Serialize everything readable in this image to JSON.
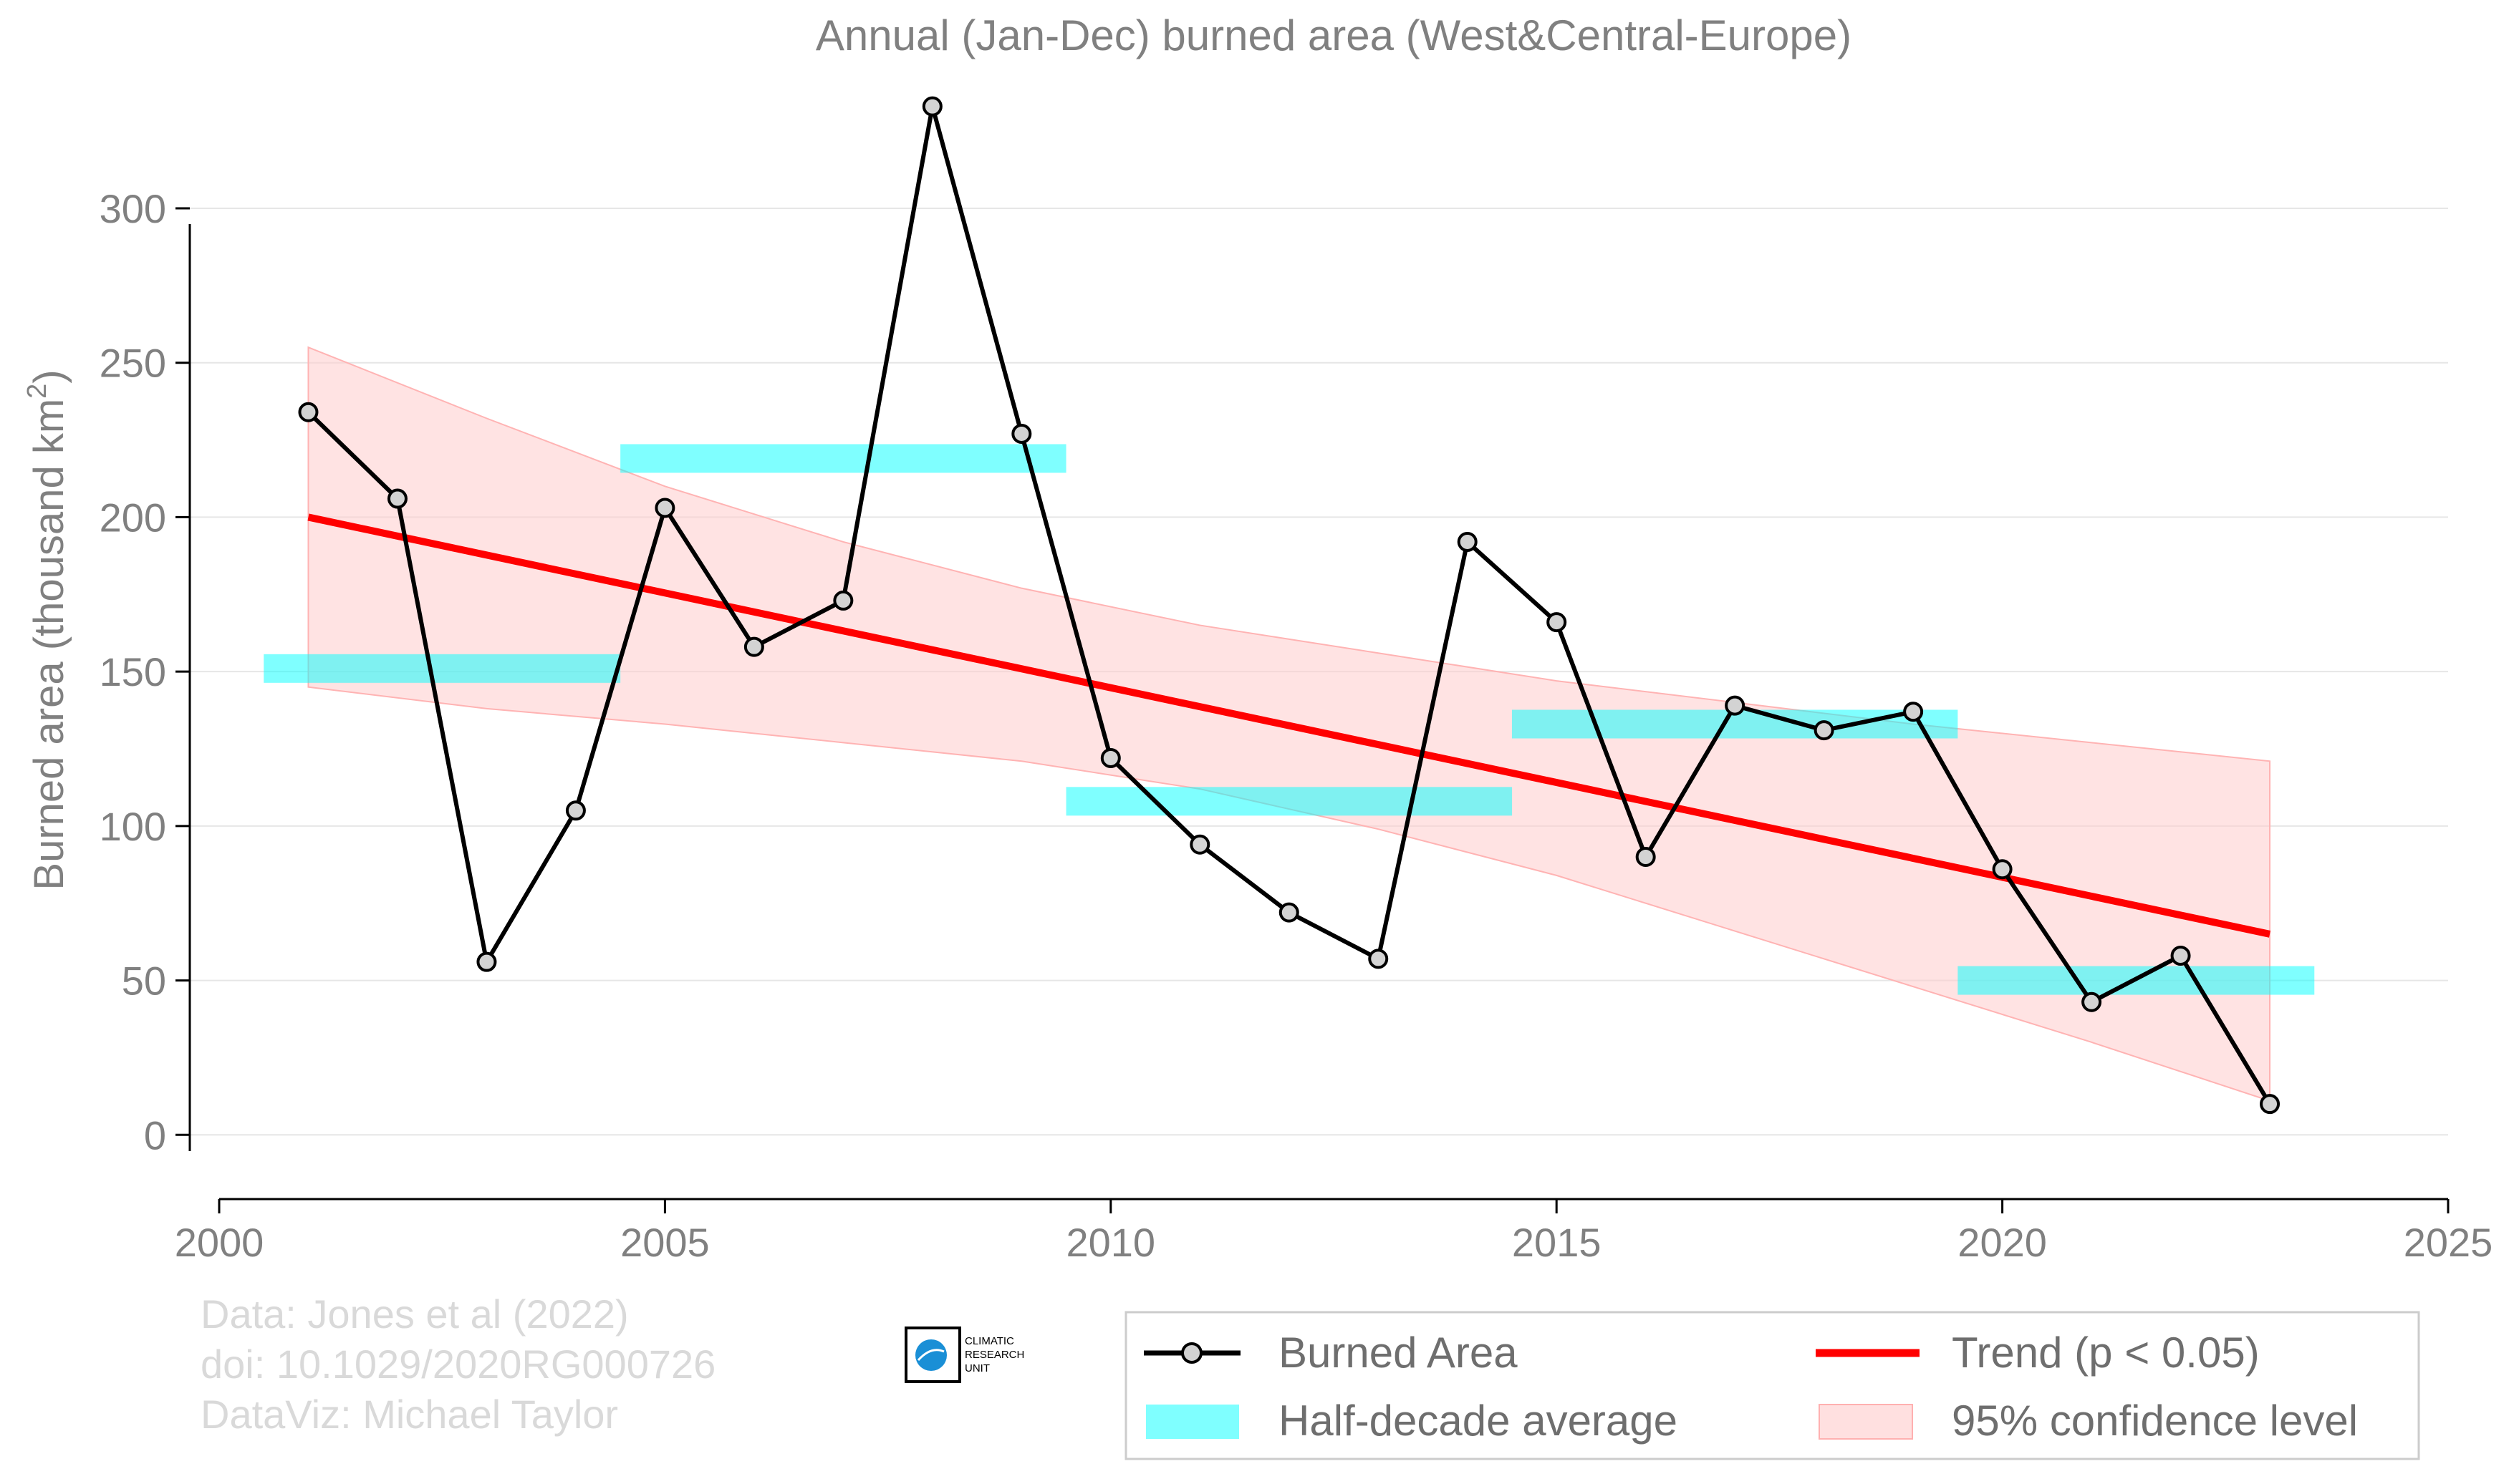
{
  "chart_data": {
    "type": "line",
    "title": "Annual (Jan-Dec) burned area (West&Central-Europe)",
    "ylabel": "Burned area (thousand km",
    "ylabel_sup": "2",
    "ylabel_close": ")",
    "xlim": [
      2000,
      2025
    ],
    "ylim": [
      -15,
      335
    ],
    "xticks": [
      2000,
      2005,
      2010,
      2015,
      2020,
      2025
    ],
    "yticks": [
      0,
      50,
      100,
      150,
      200,
      250,
      300
    ],
    "grid": "horizontal",
    "series": [
      {
        "name": "Burned Area",
        "type": "line",
        "color": "#000000",
        "marker_fill": "#d3d3d3",
        "x": [
          2001,
          2002,
          2003,
          2004,
          2005,
          2006,
          2007,
          2008,
          2009,
          2010,
          2011,
          2012,
          2013,
          2014,
          2015,
          2016,
          2017,
          2018,
          2019,
          2020,
          2021,
          2022,
          2023
        ],
        "y": [
          234,
          206,
          56,
          105,
          203,
          158,
          173,
          333,
          227,
          122,
          94,
          72,
          57,
          192,
          166,
          90,
          139,
          131,
          137,
          86,
          43,
          58,
          10
        ]
      },
      {
        "name": "Half-decade average",
        "type": "segments",
        "color": "#00ffff",
        "segments": [
          {
            "x0": 2000.5,
            "x1": 2004.5,
            "y": 151
          },
          {
            "x0": 2004.5,
            "x1": 2009.5,
            "y": 219
          },
          {
            "x0": 2009.5,
            "x1": 2014.5,
            "y": 108
          },
          {
            "x0": 2014.5,
            "x1": 2019.5,
            "y": 133
          },
          {
            "x0": 2019.5,
            "x1": 2023.5,
            "y": 50
          }
        ]
      },
      {
        "name": "Trend (p < 0.05)",
        "type": "trend",
        "color": "#ff0000",
        "x": [
          2001,
          2023
        ],
        "y": [
          200,
          65
        ]
      },
      {
        "name": "95% confidence level",
        "type": "band",
        "color": "#ffcccc",
        "x": [
          2001,
          2003,
          2005,
          2007,
          2009,
          2011,
          2013,
          2015,
          2017,
          2019,
          2021,
          2023
        ],
        "lower": [
          145,
          138,
          133,
          127,
          121,
          112,
          99,
          84,
          66,
          48,
          30,
          11
        ],
        "upper": [
          255,
          232,
          210,
          192,
          177,
          165,
          156,
          147,
          140,
          133,
          127,
          121
        ]
      }
    ],
    "legend": {
      "position": "bottom-right",
      "items": [
        {
          "label": "Burned Area",
          "kind": "line-marker",
          "color": "#000000"
        },
        {
          "label": "Trend (p < 0.05)",
          "kind": "line",
          "color": "#ff0000"
        },
        {
          "label": "Half-decade average",
          "kind": "patch",
          "color": "#00ffff"
        },
        {
          "label": "95% confidence level",
          "kind": "patch",
          "color": "#ffcccc"
        }
      ]
    },
    "credits": [
      "Data: Jones et al (2022)",
      "doi: 10.1029/2020RG000726",
      "DataViz: Michael Taylor"
    ],
    "logo": {
      "lines": [
        "CLIMATIC",
        "RESEARCH",
        "UNIT"
      ]
    }
  }
}
